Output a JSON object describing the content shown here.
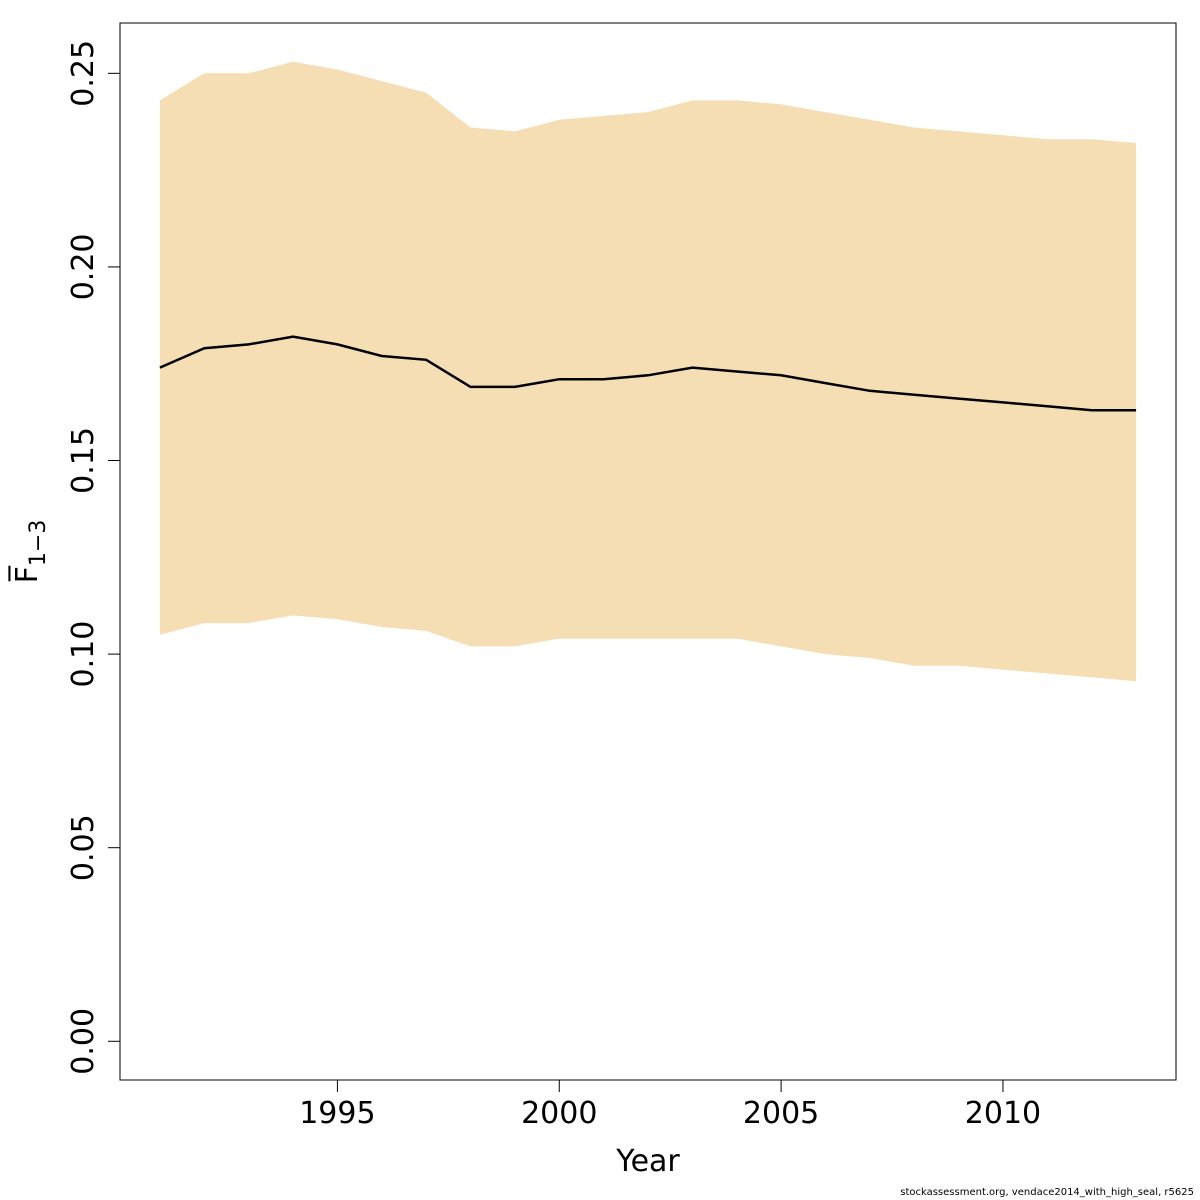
{
  "chart_data": {
    "type": "area",
    "title": "",
    "xlabel": "Year",
    "ylabel": "F̅",
    "ylabel_subscript": "1−3",
    "xlim": [
      1990.1,
      2013.9
    ],
    "ylim": [
      -0.01,
      0.263
    ],
    "x_ticks": [
      1995,
      2000,
      2005,
      2010
    ],
    "x_tick_labels": [
      "1995",
      "2000",
      "2005",
      "2010"
    ],
    "y_ticks": [
      0.0,
      0.05,
      0.1,
      0.15,
      0.2,
      0.25
    ],
    "y_tick_labels": [
      "0.00",
      "0.05",
      "0.10",
      "0.15",
      "0.20",
      "0.25"
    ],
    "grid": false,
    "band_color": "#F5DEB3",
    "line_color": "#000000",
    "x": [
      1991,
      1992,
      1993,
      1994,
      1995,
      1996,
      1997,
      1998,
      1999,
      2000,
      2001,
      2002,
      2003,
      2004,
      2005,
      2006,
      2007,
      2008,
      2009,
      2010,
      2011,
      2012,
      2013
    ],
    "series": [
      {
        "values": [
          0.174,
          0.179,
          0.18,
          0.182,
          0.18,
          0.177,
          0.176,
          0.169,
          0.169,
          0.171,
          0.171,
          0.172,
          0.174,
          0.173,
          0.172,
          0.17,
          0.168,
          0.167,
          0.166,
          0.165,
          0.164,
          0.163,
          0.163
        ]
      }
    ],
    "band_lower": [
      0.105,
      0.108,
      0.108,
      0.11,
      0.109,
      0.107,
      0.106,
      0.102,
      0.102,
      0.104,
      0.104,
      0.104,
      0.104,
      0.104,
      0.102,
      0.1,
      0.099,
      0.097,
      0.097,
      0.096,
      0.095,
      0.094,
      0.093
    ],
    "band_upper": [
      0.243,
      0.25,
      0.25,
      0.253,
      0.251,
      0.248,
      0.245,
      0.236,
      0.235,
      0.238,
      0.239,
      0.24,
      0.243,
      0.243,
      0.242,
      0.24,
      0.238,
      0.236,
      0.235,
      0.234,
      0.233,
      0.233,
      0.232
    ]
  },
  "credit": "stockassessment.org, vendace2014_with_high_seal, r5625"
}
